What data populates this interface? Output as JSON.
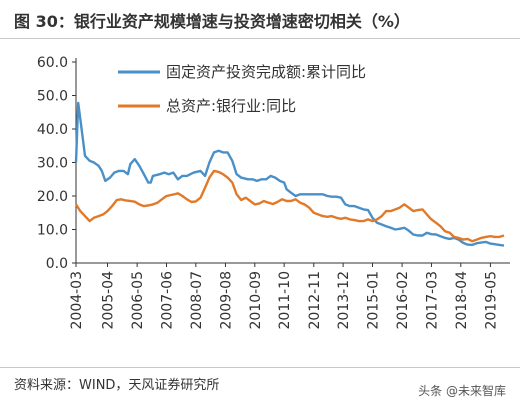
{
  "title": "图 30：银行业资产规模增速与投资增速密切相关（%）",
  "source": "资料来源：WIND，天风证券研究所",
  "watermark": "头条 @未来智库",
  "chart_data": {
    "type": "line",
    "ylim": [
      0,
      60
    ],
    "yticks": [
      0.0,
      10.0,
      20.0,
      30.0,
      40.0,
      50.0,
      60.0
    ],
    "ytick_labels": [
      "0.0",
      "10.0",
      "20.0",
      "30.0",
      "40.0",
      "50.0",
      "60.0"
    ],
    "xlim": [
      2004.17,
      2019.92
    ],
    "xticks": [
      2004.17,
      2005.33,
      2006.42,
      2007.5,
      2008.58,
      2009.67,
      2010.75,
      2011.83,
      2012.92,
      2014.0,
      2015.08,
      2016.17,
      2017.25,
      2018.33,
      2019.42
    ],
    "xtick_labels": [
      "2004-03",
      "2005-04",
      "2006-05",
      "2007-06",
      "2008-07",
      "2009-08",
      "2010-09",
      "2011-10",
      "2012-11",
      "2013-12",
      "2015-01",
      "2016-02",
      "2017-03",
      "2018-04",
      "2019-05"
    ],
    "grid": false,
    "legend_position": "top-right",
    "series": [
      {
        "name": "固定资产投资完成额:累计同比",
        "color": "#4a90c8",
        "points": [
          [
            2004.17,
            30
          ],
          [
            2004.25,
            47.8
          ],
          [
            2004.33,
            43
          ],
          [
            2004.5,
            32
          ],
          [
            2004.67,
            30.5
          ],
          [
            2004.83,
            30
          ],
          [
            2005.0,
            29
          ],
          [
            2005.12,
            27.5
          ],
          [
            2005.25,
            24.5
          ],
          [
            2005.42,
            25.5
          ],
          [
            2005.58,
            27
          ],
          [
            2005.75,
            27.5
          ],
          [
            2005.92,
            27.5
          ],
          [
            2006.08,
            26.5
          ],
          [
            2006.17,
            29.5
          ],
          [
            2006.33,
            31
          ],
          [
            2006.5,
            29
          ],
          [
            2006.67,
            26.5
          ],
          [
            2006.83,
            24
          ],
          [
            2006.92,
            24
          ],
          [
            2007.0,
            26
          ],
          [
            2007.25,
            26.5
          ],
          [
            2007.42,
            27
          ],
          [
            2007.58,
            26.5
          ],
          [
            2007.75,
            27
          ],
          [
            2007.92,
            25
          ],
          [
            2008.08,
            26
          ],
          [
            2008.25,
            26
          ],
          [
            2008.5,
            27
          ],
          [
            2008.75,
            27.5
          ],
          [
            2008.92,
            26
          ],
          [
            2009.08,
            30
          ],
          [
            2009.25,
            33
          ],
          [
            2009.42,
            33.5
          ],
          [
            2009.58,
            33
          ],
          [
            2009.75,
            33
          ],
          [
            2009.92,
            30.5
          ],
          [
            2010.08,
            26.5
          ],
          [
            2010.25,
            25.5
          ],
          [
            2010.5,
            25
          ],
          [
            2010.67,
            25
          ],
          [
            2010.83,
            24.5
          ],
          [
            2011.0,
            25
          ],
          [
            2011.17,
            25
          ],
          [
            2011.33,
            26
          ],
          [
            2011.5,
            25.5
          ],
          [
            2011.67,
            24.5
          ],
          [
            2011.83,
            24
          ],
          [
            2011.92,
            22
          ],
          [
            2012.08,
            21
          ],
          [
            2012.25,
            20
          ],
          [
            2012.42,
            20.5
          ],
          [
            2012.58,
            20.5
          ],
          [
            2012.75,
            20.5
          ],
          [
            2012.92,
            20.5
          ],
          [
            2013.08,
            20.5
          ],
          [
            2013.25,
            20.5
          ],
          [
            2013.42,
            20
          ],
          [
            2013.58,
            19.8
          ],
          [
            2013.75,
            19.8
          ],
          [
            2013.92,
            19.5
          ],
          [
            2014.08,
            17.5
          ],
          [
            2014.25,
            17
          ],
          [
            2014.42,
            17
          ],
          [
            2014.58,
            16.5
          ],
          [
            2014.75,
            16
          ],
          [
            2014.92,
            15.8
          ],
          [
            2015.08,
            13.5
          ],
          [
            2015.25,
            12
          ],
          [
            2015.42,
            11.5
          ],
          [
            2015.58,
            11
          ],
          [
            2015.75,
            10.5
          ],
          [
            2015.92,
            10
          ],
          [
            2016.08,
            10.2
          ],
          [
            2016.25,
            10.5
          ],
          [
            2016.42,
            9.6
          ],
          [
            2016.58,
            8.5
          ],
          [
            2016.75,
            8.2
          ],
          [
            2016.92,
            8.2
          ],
          [
            2017.08,
            9
          ],
          [
            2017.25,
            8.6
          ],
          [
            2017.42,
            8.5
          ],
          [
            2017.58,
            8
          ],
          [
            2017.75,
            7.5
          ],
          [
            2017.92,
            7.2
          ],
          [
            2018.08,
            7.5
          ],
          [
            2018.25,
            7
          ],
          [
            2018.42,
            6
          ],
          [
            2018.58,
            5.5
          ],
          [
            2018.75,
            5.4
          ],
          [
            2018.92,
            5.9
          ],
          [
            2019.08,
            6.1
          ],
          [
            2019.25,
            6.3
          ],
          [
            2019.42,
            5.8
          ],
          [
            2019.58,
            5.6
          ],
          [
            2019.75,
            5.4
          ],
          [
            2019.92,
            5.2
          ]
        ]
      },
      {
        "name": "总资产:银行业:同比",
        "color": "#e07a2a",
        "points": [
          [
            2004.17,
            17.5
          ],
          [
            2004.33,
            15.5
          ],
          [
            2004.5,
            14
          ],
          [
            2004.67,
            12.5
          ],
          [
            2004.83,
            13.5
          ],
          [
            2005.0,
            14
          ],
          [
            2005.17,
            14.5
          ],
          [
            2005.33,
            15.5
          ],
          [
            2005.5,
            17
          ],
          [
            2005.67,
            18.8
          ],
          [
            2005.83,
            19
          ],
          [
            2006.0,
            18.7
          ],
          [
            2006.17,
            18.5
          ],
          [
            2006.33,
            18.3
          ],
          [
            2006.5,
            17.5
          ],
          [
            2006.67,
            17
          ],
          [
            2006.83,
            17.2
          ],
          [
            2007.0,
            17.5
          ],
          [
            2007.17,
            18
          ],
          [
            2007.33,
            19
          ],
          [
            2007.5,
            20
          ],
          [
            2007.67,
            20.3
          ],
          [
            2007.83,
            20.6
          ],
          [
            2007.92,
            20.8
          ],
          [
            2008.08,
            20
          ],
          [
            2008.25,
            19
          ],
          [
            2008.42,
            18.2
          ],
          [
            2008.58,
            18.4
          ],
          [
            2008.75,
            19.5
          ],
          [
            2008.92,
            22.5
          ],
          [
            2009.08,
            25.5
          ],
          [
            2009.25,
            27.5
          ],
          [
            2009.42,
            27.2
          ],
          [
            2009.58,
            26.5
          ],
          [
            2009.75,
            25.5
          ],
          [
            2009.92,
            24
          ],
          [
            2010.08,
            20.5
          ],
          [
            2010.25,
            18.8
          ],
          [
            2010.42,
            19.5
          ],
          [
            2010.58,
            18.5
          ],
          [
            2010.75,
            17.5
          ],
          [
            2010.92,
            17.8
          ],
          [
            2011.08,
            18.5
          ],
          [
            2011.25,
            18
          ],
          [
            2011.42,
            17.6
          ],
          [
            2011.58,
            18.2
          ],
          [
            2011.75,
            19
          ],
          [
            2011.92,
            18.5
          ],
          [
            2012.08,
            18.5
          ],
          [
            2012.25,
            19
          ],
          [
            2012.42,
            18
          ],
          [
            2012.58,
            17.5
          ],
          [
            2012.75,
            16.5
          ],
          [
            2012.92,
            15
          ],
          [
            2013.08,
            14.5
          ],
          [
            2013.25,
            14
          ],
          [
            2013.42,
            13.8
          ],
          [
            2013.58,
            14
          ],
          [
            2013.75,
            13.5
          ],
          [
            2013.92,
            13.2
          ],
          [
            2014.08,
            13.5
          ],
          [
            2014.25,
            13
          ],
          [
            2014.42,
            12.8
          ],
          [
            2014.58,
            12.5
          ],
          [
            2014.75,
            12.5
          ],
          [
            2014.92,
            13
          ],
          [
            2015.08,
            12.5
          ],
          [
            2015.25,
            13
          ],
          [
            2015.42,
            14
          ],
          [
            2015.58,
            15.5
          ],
          [
            2015.75,
            15.5
          ],
          [
            2015.92,
            16
          ],
          [
            2016.08,
            16.5
          ],
          [
            2016.25,
            17.5
          ],
          [
            2016.42,
            16.5
          ],
          [
            2016.58,
            15.5
          ],
          [
            2016.75,
            15.8
          ],
          [
            2016.92,
            16
          ],
          [
            2017.08,
            14.5
          ],
          [
            2017.25,
            13
          ],
          [
            2017.42,
            12
          ],
          [
            2017.58,
            11
          ],
          [
            2017.75,
            9.5
          ],
          [
            2017.92,
            9
          ],
          [
            2018.08,
            7.8
          ],
          [
            2018.25,
            7.5
          ],
          [
            2018.42,
            7
          ],
          [
            2018.58,
            7.2
          ],
          [
            2018.75,
            6.5
          ],
          [
            2018.92,
            7
          ],
          [
            2019.08,
            7.5
          ],
          [
            2019.25,
            7.8
          ],
          [
            2019.42,
            8
          ],
          [
            2019.58,
            7.8
          ],
          [
            2019.75,
            7.8
          ],
          [
            2019.92,
            8.2
          ]
        ]
      }
    ]
  }
}
